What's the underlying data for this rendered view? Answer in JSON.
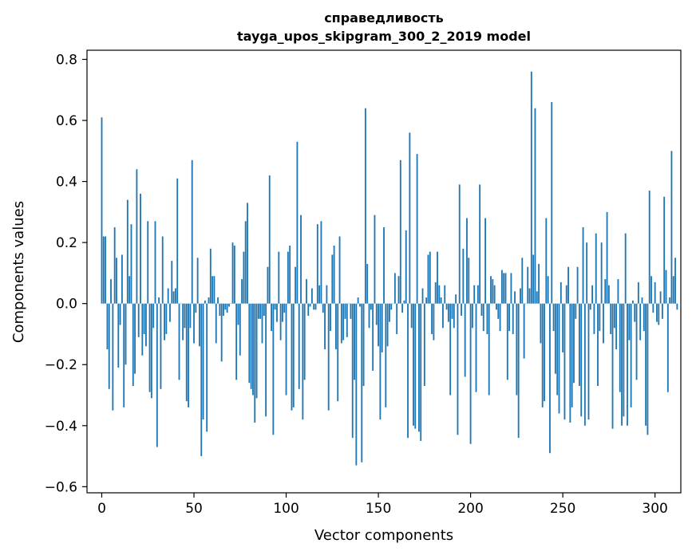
{
  "chart_data": {
    "type": "bar",
    "title": "справедливость",
    "subtitle": "tayga_upos_skipgram_300_2_2019 model",
    "xlabel": "Vector components",
    "ylabel": "Components values",
    "xlim": [
      -8,
      314
    ],
    "ylim": [
      -0.62,
      0.83
    ],
    "xticks": [
      0,
      50,
      100,
      150,
      200,
      250,
      300
    ],
    "yticks": [
      -0.6,
      -0.4,
      -0.2,
      0.0,
      0.2,
      0.4,
      0.6,
      0.8
    ],
    "ytick_labels": [
      "−0.6",
      "−0.4",
      "−0.2",
      "0.0",
      "0.2",
      "0.4",
      "0.6",
      "0.8"
    ],
    "bar_color": "#1f77b4",
    "grid": false,
    "values": [
      0.61,
      0.22,
      0.22,
      -0.15,
      -0.28,
      0.08,
      -0.35,
      0.25,
      0.15,
      -0.21,
      -0.07,
      0.16,
      -0.34,
      -0.2,
      0.34,
      0.09,
      0.26,
      -0.27,
      -0.23,
      0.44,
      -0.11,
      0.36,
      -0.17,
      -0.1,
      -0.14,
      0.27,
      -0.29,
      -0.31,
      -0.08,
      0.27,
      -0.47,
      0.02,
      -0.28,
      0.22,
      -0.12,
      -0.1,
      0.05,
      -0.06,
      0.14,
      0.04,
      0.05,
      0.41,
      -0.25,
      0.0,
      -0.12,
      -0.08,
      -0.32,
      -0.34,
      -0.08,
      0.47,
      -0.13,
      -0.03,
      0.15,
      -0.14,
      -0.5,
      -0.38,
      0.01,
      -0.42,
      0.02,
      0.18,
      0.09,
      0.09,
      -0.13,
      0.02,
      -0.04,
      -0.19,
      -0.04,
      -0.02,
      -0.03,
      -0.01,
      0.0,
      0.2,
      0.19,
      -0.25,
      -0.07,
      -0.17,
      0.08,
      0.17,
      0.27,
      0.33,
      -0.26,
      -0.28,
      -0.3,
      -0.39,
      -0.31,
      -0.05,
      -0.05,
      -0.13,
      -0.04,
      -0.37,
      0.12,
      0.42,
      -0.09,
      -0.43,
      -0.02,
      -0.06,
      0.17,
      -0.12,
      -0.06,
      -0.03,
      -0.3,
      0.17,
      0.19,
      -0.35,
      -0.34,
      0.12,
      0.53,
      -0.28,
      0.29,
      -0.38,
      -0.25,
      0.08,
      -0.04,
      -0.01,
      0.05,
      -0.02,
      -0.02,
      0.26,
      0.06,
      0.27,
      -0.03,
      -0.15,
      0.06,
      -0.35,
      -0.09,
      0.16,
      0.19,
      -0.15,
      -0.32,
      0.22,
      -0.13,
      -0.12,
      -0.05,
      -0.11,
      0.0,
      -0.05,
      -0.44,
      -0.25,
      -0.53,
      0.02,
      -0.01,
      -0.52,
      -0.27,
      0.64,
      0.13,
      -0.08,
      -0.02,
      -0.22,
      0.29,
      -0.07,
      -0.14,
      -0.38,
      -0.16,
      0.25,
      -0.34,
      -0.14,
      -0.06,
      -0.02,
      0.0,
      0.1,
      -0.1,
      0.09,
      0.47,
      -0.03,
      0.01,
      0.24,
      -0.44,
      0.56,
      -0.08,
      -0.4,
      -0.41,
      0.49,
      -0.42,
      -0.45,
      0.05,
      -0.27,
      0.02,
      0.16,
      0.17,
      -0.1,
      -0.12,
      0.07,
      0.17,
      0.06,
      0.02,
      -0.08,
      0.06,
      -0.02,
      -0.06,
      -0.3,
      -0.05,
      -0.08,
      0.03,
      -0.43,
      0.39,
      -0.04,
      0.18,
      -0.24,
      0.28,
      0.15,
      -0.46,
      -0.08,
      0.06,
      -0.29,
      0.06,
      0.39,
      -0.04,
      -0.09,
      0.28,
      -0.1,
      -0.3,
      0.09,
      0.08,
      0.06,
      -0.02,
      -0.05,
      -0.09,
      0.11,
      0.1,
      0.1,
      -0.25,
      -0.09,
      0.1,
      -0.1,
      0.04,
      -0.3,
      -0.44,
      0.05,
      0.15,
      -0.18,
      0.0,
      0.12,
      0.05,
      0.76,
      0.16,
      0.64,
      0.04,
      0.13,
      -0.13,
      -0.34,
      -0.32,
      0.28,
      0.09,
      -0.49,
      0.66,
      -0.09,
      -0.23,
      -0.3,
      -0.36,
      0.07,
      -0.16,
      -0.38,
      0.06,
      0.12,
      -0.39,
      -0.34,
      -0.26,
      -0.05,
      0.12,
      -0.27,
      -0.37,
      0.25,
      -0.4,
      0.2,
      -0.38,
      -0.02,
      0.06,
      -0.1,
      0.23,
      -0.27,
      -0.09,
      0.2,
      -0.13,
      0.08,
      0.3,
      0.06,
      -0.1,
      -0.41,
      -0.08,
      -0.15,
      0.08,
      -0.29,
      -0.4,
      -0.37,
      0.23,
      -0.4,
      -0.12,
      -0.34,
      0.01,
      -0.06,
      -0.25,
      0.07,
      -0.12,
      0.02,
      -0.09,
      -0.4,
      -0.43,
      0.37,
      0.09,
      -0.03,
      0.07,
      -0.06,
      -0.07,
      0.04,
      -0.05,
      0.35,
      0.11,
      -0.29,
      0.02,
      0.5,
      0.09,
      0.15,
      -0.02
    ]
  }
}
